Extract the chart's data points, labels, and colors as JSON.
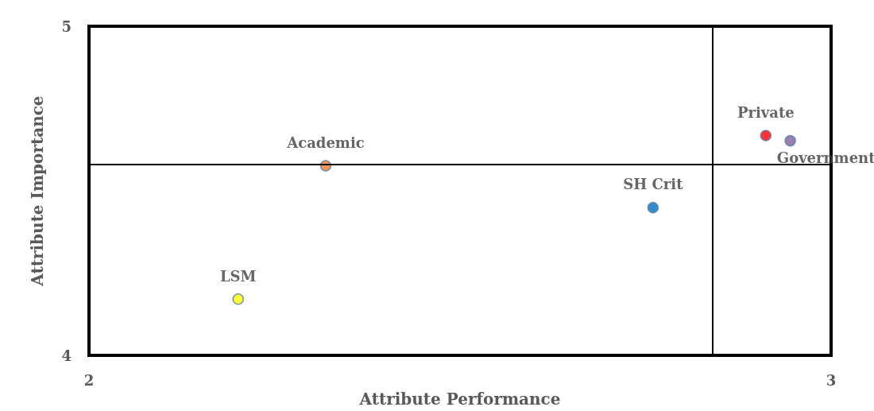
{
  "chart_data": {
    "type": "scatter",
    "xlabel": "Attribute Performance",
    "ylabel": "Attribute Importance",
    "xlim": [
      2,
      3
    ],
    "xticks": [
      2,
      3
    ],
    "ylim": [
      4,
      5
    ],
    "yticks": [
      4,
      5
    ],
    "grid": false,
    "legend": false,
    "marker": "circle",
    "series": [
      {
        "name": "Academic",
        "color": "#ed7d31",
        "x": [
          2.319
        ],
        "values": [
          4.576
        ]
      },
      {
        "name": "LSM",
        "color": "#ffff00",
        "x": [
          2.201
        ],
        "values": [
          4.171
        ]
      },
      {
        "name": "SH Crit",
        "color": "#0070c0",
        "x": [
          2.76
        ],
        "values": [
          4.449
        ]
      },
      {
        "name": "Private",
        "color": "#ff0000",
        "x": [
          2.912
        ],
        "values": [
          4.668
        ]
      },
      {
        "name": "Government",
        "color": "#7f5fa0",
        "x": [
          2.945
        ],
        "values": [
          4.652
        ]
      }
    ],
    "ref_lines": [
      {
        "axis": "x",
        "value": 2.839,
        "label": null,
        "color": "#000000"
      },
      {
        "axis": "y",
        "value": 4.583,
        "label": null,
        "color": "#000000"
      }
    ]
  }
}
